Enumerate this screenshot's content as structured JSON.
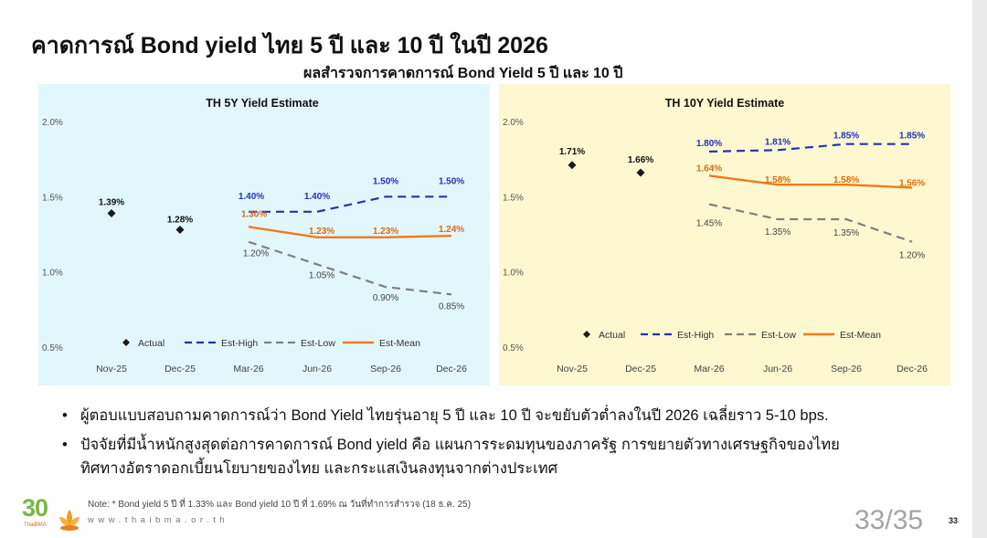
{
  "slide": {
    "title": "คาดการณ์ Bond yield ไทย 5 ปี และ 10 ปี ในปี 2026",
    "subtitle": "ผลสำรวจการคาดการณ์ Bond Yield 5 ปี และ 10 ปี",
    "bullets": [
      "ผู้ตอบแบบสอบถามคาดการณ์ว่า  Bond Yield ไทยรุ่นอายุ 5 ปี และ 10 ปี จะขยับตัวต่ำลงในปี 2026 เฉลี่ยราว 5-10 bps.",
      "ปัจจัยที่มีน้ำหนักสูงสุดต่อการคาดการณ์ Bond yield คือ แผนการระดมทุนของภาครัฐ การขยายตัวทางเศรษฐกิจของไทย",
      "ทิศทางอัตราดอกเบี้ยนโยบายของไทย และกระแสเงินลงทุนจากต่างประเทศ"
    ],
    "bullet_symbol": "•",
    "note": "Note: * Bond yield 5 ปี ที่ 1.33% และ Bond yield 10 ปี ที่ 1.69% ณ วันที่ทำการสำรวจ (18 ธ.ค. 25)",
    "website": "www.thaibma.or.th",
    "logo_number": "30",
    "logo_text": "ThaiBMA",
    "pager": "33/35",
    "page_number": "33"
  },
  "colors": {
    "panel_5y_bg": "#e2f7fc",
    "panel_10y_bg": "#fdf8d0",
    "est_high": "#2233bb",
    "est_low": "#808080",
    "est_mean": "#f07a1c",
    "actual": "#1a1a1a"
  },
  "chart_data": [
    {
      "type": "line",
      "title": "TH 5Y Yield Estimate",
      "categories": [
        "Nov-25",
        "Dec-25",
        "Mar-26",
        "Jun-26",
        "Sep-26",
        "Dec-26"
      ],
      "ylim": [
        0.5,
        2.0
      ],
      "yticks": [
        "0.5%",
        "1.0%",
        "1.5%",
        "2.0%"
      ],
      "grid": false,
      "legend": "bottom",
      "series": [
        {
          "name": "Actual",
          "style": "markers",
          "values": [
            1.39,
            1.28,
            null,
            null,
            null,
            null
          ],
          "labels": [
            "1.39%",
            "1.28%",
            "",
            "",
            "",
            ""
          ]
        },
        {
          "name": "Est-High",
          "style": "dashed",
          "values": [
            null,
            null,
            1.4,
            1.4,
            1.5,
            1.5
          ],
          "labels": [
            "",
            "",
            "1.40%",
            "1.40%",
            "1.50%",
            "1.50%"
          ]
        },
        {
          "name": "Est-Low",
          "style": "dashed",
          "values": [
            null,
            null,
            1.2,
            1.05,
            0.9,
            0.85
          ],
          "labels": [
            "",
            "",
            "1.20%",
            "1.05%",
            "0.90%",
            "0.85%"
          ]
        },
        {
          "name": "Est-Mean",
          "style": "solid",
          "values": [
            null,
            null,
            1.3,
            1.23,
            1.23,
            1.24
          ],
          "labels": [
            "",
            "",
            "1.30%",
            "1.23%",
            "1.23%",
            "1.24%"
          ]
        }
      ]
    },
    {
      "type": "line",
      "title": "TH 10Y Yield Estimate",
      "categories": [
        "Nov-25",
        "Dec-25",
        "Mar-26",
        "Jun-26",
        "Sep-26",
        "Dec-26"
      ],
      "ylim": [
        0.5,
        2.0
      ],
      "yticks": [
        "0.5%",
        "1.0%",
        "1.5%",
        "2.0%"
      ],
      "grid": false,
      "legend": "bottom",
      "series": [
        {
          "name": "Actual",
          "style": "markers",
          "values": [
            1.71,
            1.66,
            null,
            null,
            null,
            null
          ],
          "labels": [
            "1.71%",
            "1.66%",
            "",
            "",
            "",
            ""
          ]
        },
        {
          "name": "Est-High",
          "style": "dashed",
          "values": [
            null,
            null,
            1.8,
            1.81,
            1.85,
            1.85
          ],
          "labels": [
            "",
            "",
            "1.80%",
            "1.81%",
            "1.85%",
            "1.85%"
          ]
        },
        {
          "name": "Est-Low",
          "style": "dashed",
          "values": [
            null,
            null,
            1.45,
            1.35,
            1.35,
            1.2
          ],
          "labels": [
            "",
            "",
            "1.45%",
            "1.35%",
            "1.35%",
            "1.20%"
          ]
        },
        {
          "name": "Est-Mean",
          "style": "solid",
          "values": [
            null,
            null,
            1.64,
            1.58,
            1.58,
            1.56
          ],
          "labels": [
            "",
            "",
            "1.64%",
            "1.58%",
            "1.58%",
            "1.56%"
          ]
        }
      ]
    }
  ]
}
